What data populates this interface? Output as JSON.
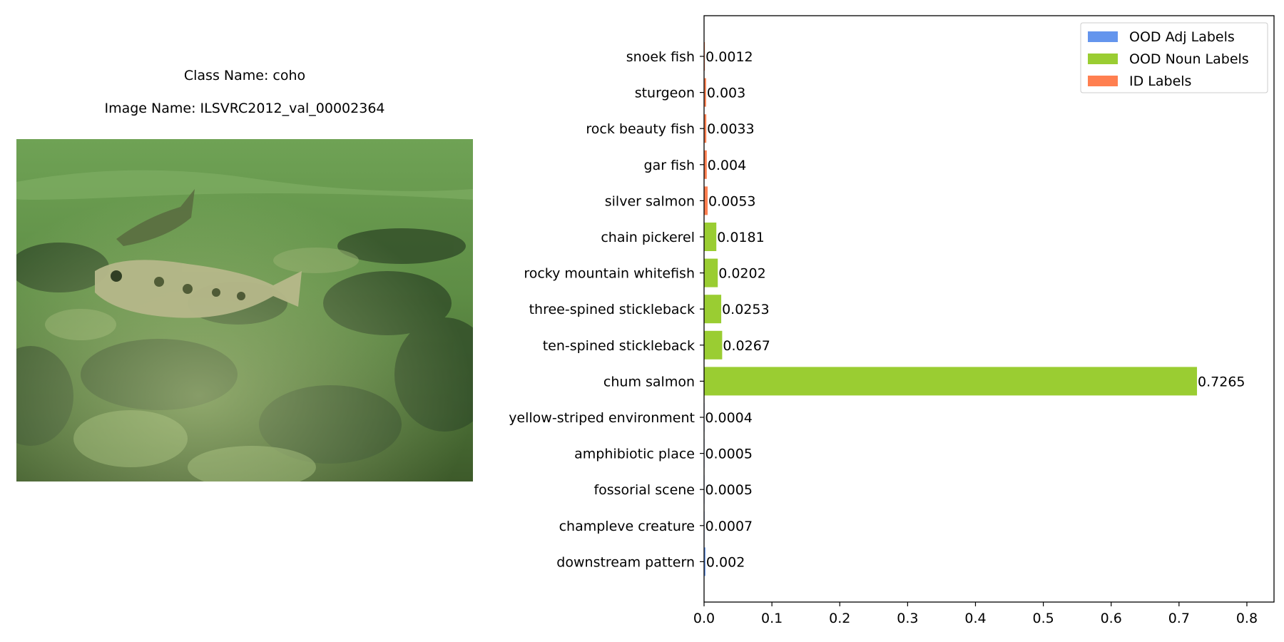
{
  "figure": {
    "class_line": "Class Name: coho",
    "image_line": "Image Name: ILSVRC2012_val_00002364"
  },
  "colors": {
    "ood_adj": "#6495ED",
    "ood_noun": "#9ACD32",
    "id": "#FF7F50"
  },
  "chart_data": {
    "type": "bar",
    "orientation": "horizontal",
    "xlim": [
      0,
      0.84
    ],
    "xticks": [
      "0.0",
      "0.1",
      "0.2",
      "0.3",
      "0.4",
      "0.5",
      "0.6",
      "0.7",
      "0.8"
    ],
    "xtick_values": [
      0,
      0.1,
      0.2,
      0.3,
      0.4,
      0.5,
      0.6,
      0.7,
      0.8
    ],
    "grid": false,
    "legend_position": "top-right",
    "legend": [
      {
        "label": "OOD Adj Labels",
        "group": "ood_adj"
      },
      {
        "label": "OOD Noun Labels",
        "group": "ood_noun"
      },
      {
        "label": "ID Labels",
        "group": "id"
      }
    ],
    "bars": [
      {
        "category": "snoek fish",
        "value": 0.0012,
        "label": "0.0012",
        "group": "id"
      },
      {
        "category": "sturgeon",
        "value": 0.003,
        "label": "0.003",
        "group": "id"
      },
      {
        "category": "rock beauty fish",
        "value": 0.0033,
        "label": "0.0033",
        "group": "id"
      },
      {
        "category": "gar fish",
        "value": 0.004,
        "label": "0.004",
        "group": "id"
      },
      {
        "category": "silver salmon",
        "value": 0.0053,
        "label": "0.0053",
        "group": "id"
      },
      {
        "category": "chain pickerel",
        "value": 0.0181,
        "label": "0.0181",
        "group": "ood_noun"
      },
      {
        "category": "rocky mountain whitefish",
        "value": 0.0202,
        "label": "0.0202",
        "group": "ood_noun"
      },
      {
        "category": "three-spined stickleback",
        "value": 0.0253,
        "label": "0.0253",
        "group": "ood_noun"
      },
      {
        "category": "ten-spined stickleback",
        "value": 0.0267,
        "label": "0.0267",
        "group": "ood_noun"
      },
      {
        "category": "chum salmon",
        "value": 0.7265,
        "label": "0.7265",
        "group": "ood_noun"
      },
      {
        "category": "yellow-striped environment",
        "value": 0.0004,
        "label": "0.0004",
        "group": "ood_adj"
      },
      {
        "category": "amphibiotic place",
        "value": 0.0005,
        "label": "0.0005",
        "group": "ood_adj"
      },
      {
        "category": "fossorial scene",
        "value": 0.0005,
        "label": "0.0005",
        "group": "ood_adj"
      },
      {
        "category": "champleve creature",
        "value": 0.0007,
        "label": "0.0007",
        "group": "ood_adj"
      },
      {
        "category": "downstream pattern",
        "value": 0.002,
        "label": "0.002",
        "group": "ood_adj"
      }
    ]
  }
}
